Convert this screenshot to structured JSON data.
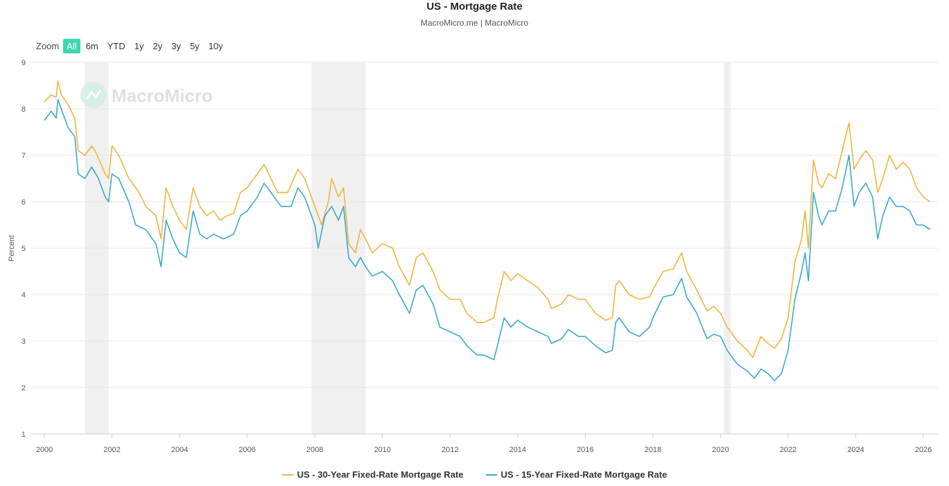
{
  "header": {
    "title": "US - Mortgage Rate",
    "subtitle": "MacroMicro.me | MacroMicro"
  },
  "zoom": {
    "label": "Zoom",
    "options": [
      "All",
      "6m",
      "YTD",
      "1y",
      "2y",
      "3y",
      "5y",
      "10y"
    ],
    "selected": "All"
  },
  "watermark": "MacroMicro",
  "colors": {
    "series30": "#f0b43c",
    "series15": "#38a9cc",
    "recession": "#f0f0f0",
    "grid": "#e6e6e6",
    "accent": "#3ed6b4"
  },
  "chart_data": {
    "type": "line",
    "title": "US - Mortgage Rate",
    "ylabel": "Percent",
    "xlim": [
      2000,
      2026.4
    ],
    "ylim": [
      1,
      9
    ],
    "yticks": [
      "1",
      "2",
      "3",
      "4",
      "5",
      "6",
      "7",
      "8",
      "9"
    ],
    "xticks": [
      "2000",
      "2002",
      "2004",
      "2006",
      "2008",
      "2010",
      "2012",
      "2014",
      "2016",
      "2018",
      "2020",
      "2022",
      "2024",
      "2026"
    ],
    "grid": true,
    "legend_position": "bottom",
    "recessions": [
      [
        2001.2,
        2001.9
      ],
      [
        2007.9,
        2009.5
      ],
      [
        2020.1,
        2020.3
      ]
    ],
    "series": [
      {
        "name": "US - 30-Year Fixed-Rate Mortgage Rate",
        "color": "#f0b43c",
        "points": [
          [
            2000.0,
            8.15
          ],
          [
            2000.2,
            8.3
          ],
          [
            2000.35,
            8.25
          ],
          [
            2000.4,
            8.6
          ],
          [
            2000.5,
            8.3
          ],
          [
            2000.7,
            8.1
          ],
          [
            2000.9,
            7.8
          ],
          [
            2001.0,
            7.1
          ],
          [
            2001.2,
            7.0
          ],
          [
            2001.4,
            7.2
          ],
          [
            2001.5,
            7.1
          ],
          [
            2001.8,
            6.6
          ],
          [
            2001.9,
            6.5
          ],
          [
            2002.0,
            7.2
          ],
          [
            2002.2,
            7.0
          ],
          [
            2002.5,
            6.5
          ],
          [
            2002.8,
            6.2
          ],
          [
            2003.0,
            5.9
          ],
          [
            2003.3,
            5.7
          ],
          [
            2003.45,
            5.2
          ],
          [
            2003.6,
            6.3
          ],
          [
            2003.8,
            5.9
          ],
          [
            2004.0,
            5.6
          ],
          [
            2004.2,
            5.4
          ],
          [
            2004.4,
            6.3
          ],
          [
            2004.6,
            5.9
          ],
          [
            2004.8,
            5.7
          ],
          [
            2005.0,
            5.8
          ],
          [
            2005.2,
            5.6
          ],
          [
            2005.4,
            5.7
          ],
          [
            2005.6,
            5.75
          ],
          [
            2005.8,
            6.2
          ],
          [
            2006.0,
            6.3
          ],
          [
            2006.3,
            6.6
          ],
          [
            2006.5,
            6.8
          ],
          [
            2006.7,
            6.5
          ],
          [
            2006.9,
            6.2
          ],
          [
            2007.2,
            6.2
          ],
          [
            2007.5,
            6.7
          ],
          [
            2007.7,
            6.5
          ],
          [
            2008.0,
            5.9
          ],
          [
            2008.2,
            5.5
          ],
          [
            2008.4,
            6.0
          ],
          [
            2008.5,
            6.5
          ],
          [
            2008.7,
            6.1
          ],
          [
            2008.85,
            6.3
          ],
          [
            2009.0,
            5.1
          ],
          [
            2009.2,
            4.9
          ],
          [
            2009.35,
            5.4
          ],
          [
            2009.5,
            5.2
          ],
          [
            2009.7,
            4.9
          ],
          [
            2010.0,
            5.1
          ],
          [
            2010.3,
            5.0
          ],
          [
            2010.5,
            4.6
          ],
          [
            2010.8,
            4.2
          ],
          [
            2011.0,
            4.8
          ],
          [
            2011.2,
            4.9
          ],
          [
            2011.5,
            4.5
          ],
          [
            2011.7,
            4.1
          ],
          [
            2012.0,
            3.9
          ],
          [
            2012.3,
            3.9
          ],
          [
            2012.5,
            3.6
          ],
          [
            2012.8,
            3.4
          ],
          [
            2013.0,
            3.4
          ],
          [
            2013.3,
            3.5
          ],
          [
            2013.4,
            3.9
          ],
          [
            2013.6,
            4.5
          ],
          [
            2013.8,
            4.3
          ],
          [
            2014.0,
            4.45
          ],
          [
            2014.3,
            4.3
          ],
          [
            2014.6,
            4.15
          ],
          [
            2014.9,
            3.9
          ],
          [
            2015.0,
            3.7
          ],
          [
            2015.3,
            3.8
          ],
          [
            2015.5,
            4.0
          ],
          [
            2015.8,
            3.9
          ],
          [
            2016.0,
            3.9
          ],
          [
            2016.3,
            3.6
          ],
          [
            2016.6,
            3.45
          ],
          [
            2016.8,
            3.5
          ],
          [
            2016.9,
            4.2
          ],
          [
            2017.0,
            4.3
          ],
          [
            2017.3,
            4.0
          ],
          [
            2017.6,
            3.9
          ],
          [
            2017.9,
            3.95
          ],
          [
            2018.0,
            4.1
          ],
          [
            2018.3,
            4.5
          ],
          [
            2018.6,
            4.55
          ],
          [
            2018.85,
            4.9
          ],
          [
            2019.0,
            4.5
          ],
          [
            2019.3,
            4.1
          ],
          [
            2019.6,
            3.65
          ],
          [
            2019.8,
            3.75
          ],
          [
            2020.0,
            3.6
          ],
          [
            2020.2,
            3.3
          ],
          [
            2020.5,
            3.0
          ],
          [
            2020.8,
            2.8
          ],
          [
            2020.95,
            2.65
          ],
          [
            2021.2,
            3.1
          ],
          [
            2021.4,
            2.95
          ],
          [
            2021.6,
            2.85
          ],
          [
            2021.8,
            3.05
          ],
          [
            2022.0,
            3.5
          ],
          [
            2022.2,
            4.7
          ],
          [
            2022.4,
            5.2
          ],
          [
            2022.5,
            5.8
          ],
          [
            2022.6,
            5.0
          ],
          [
            2022.75,
            6.9
          ],
          [
            2022.9,
            6.4
          ],
          [
            2023.0,
            6.3
          ],
          [
            2023.2,
            6.6
          ],
          [
            2023.4,
            6.5
          ],
          [
            2023.6,
            7.1
          ],
          [
            2023.8,
            7.7
          ],
          [
            2023.95,
            6.7
          ],
          [
            2024.1,
            6.9
          ],
          [
            2024.3,
            7.1
          ],
          [
            2024.5,
            6.9
          ],
          [
            2024.65,
            6.2
          ],
          [
            2024.8,
            6.5
          ],
          [
            2025.0,
            7.0
          ],
          [
            2025.2,
            6.7
          ],
          [
            2025.4,
            6.85
          ],
          [
            2025.6,
            6.7
          ],
          [
            2025.8,
            6.3
          ],
          [
            2026.0,
            6.1
          ],
          [
            2026.2,
            6.0
          ]
        ]
      },
      {
        "name": "US - 15-Year Fixed-Rate Mortgage Rate",
        "color": "#38a9cc",
        "points": [
          [
            2000.0,
            7.75
          ],
          [
            2000.2,
            7.95
          ],
          [
            2000.35,
            7.8
          ],
          [
            2000.4,
            8.2
          ],
          [
            2000.55,
            7.9
          ],
          [
            2000.7,
            7.6
          ],
          [
            2000.9,
            7.4
          ],
          [
            2001.0,
            6.6
          ],
          [
            2001.2,
            6.5
          ],
          [
            2001.4,
            6.75
          ],
          [
            2001.6,
            6.5
          ],
          [
            2001.8,
            6.1
          ],
          [
            2001.9,
            6.0
          ],
          [
            2002.0,
            6.6
          ],
          [
            2002.2,
            6.5
          ],
          [
            2002.5,
            6.0
          ],
          [
            2002.7,
            5.5
          ],
          [
            2003.0,
            5.4
          ],
          [
            2003.3,
            5.1
          ],
          [
            2003.45,
            4.6
          ],
          [
            2003.6,
            5.6
          ],
          [
            2003.8,
            5.2
          ],
          [
            2004.0,
            4.9
          ],
          [
            2004.2,
            4.8
          ],
          [
            2004.4,
            5.8
          ],
          [
            2004.6,
            5.3
          ],
          [
            2004.8,
            5.2
          ],
          [
            2005.0,
            5.3
          ],
          [
            2005.3,
            5.2
          ],
          [
            2005.6,
            5.3
          ],
          [
            2005.8,
            5.7
          ],
          [
            2006.0,
            5.8
          ],
          [
            2006.3,
            6.1
          ],
          [
            2006.5,
            6.4
          ],
          [
            2006.8,
            6.1
          ],
          [
            2007.0,
            5.9
          ],
          [
            2007.3,
            5.9
          ],
          [
            2007.5,
            6.3
          ],
          [
            2007.7,
            6.1
          ],
          [
            2008.0,
            5.5
          ],
          [
            2008.1,
            5.0
          ],
          [
            2008.3,
            5.7
          ],
          [
            2008.5,
            5.9
          ],
          [
            2008.7,
            5.6
          ],
          [
            2008.85,
            5.9
          ],
          [
            2009.0,
            4.8
          ],
          [
            2009.2,
            4.6
          ],
          [
            2009.35,
            4.8
          ],
          [
            2009.5,
            4.6
          ],
          [
            2009.7,
            4.4
          ],
          [
            2010.0,
            4.5
          ],
          [
            2010.3,
            4.3
          ],
          [
            2010.5,
            4.0
          ],
          [
            2010.8,
            3.6
          ],
          [
            2011.0,
            4.1
          ],
          [
            2011.2,
            4.2
          ],
          [
            2011.5,
            3.8
          ],
          [
            2011.7,
            3.3
          ],
          [
            2012.0,
            3.2
          ],
          [
            2012.3,
            3.1
          ],
          [
            2012.5,
            2.9
          ],
          [
            2012.8,
            2.7
          ],
          [
            2013.0,
            2.7
          ],
          [
            2013.3,
            2.6
          ],
          [
            2013.4,
            2.9
          ],
          [
            2013.6,
            3.5
          ],
          [
            2013.8,
            3.3
          ],
          [
            2014.0,
            3.45
          ],
          [
            2014.3,
            3.3
          ],
          [
            2014.6,
            3.2
          ],
          [
            2014.9,
            3.1
          ],
          [
            2015.0,
            2.95
          ],
          [
            2015.3,
            3.05
          ],
          [
            2015.5,
            3.25
          ],
          [
            2015.8,
            3.1
          ],
          [
            2016.0,
            3.1
          ],
          [
            2016.3,
            2.9
          ],
          [
            2016.6,
            2.75
          ],
          [
            2016.8,
            2.8
          ],
          [
            2016.9,
            3.4
          ],
          [
            2017.0,
            3.5
          ],
          [
            2017.3,
            3.2
          ],
          [
            2017.6,
            3.1
          ],
          [
            2017.9,
            3.3
          ],
          [
            2018.0,
            3.5
          ],
          [
            2018.3,
            3.95
          ],
          [
            2018.6,
            4.0
          ],
          [
            2018.85,
            4.35
          ],
          [
            2019.0,
            3.95
          ],
          [
            2019.3,
            3.6
          ],
          [
            2019.6,
            3.05
          ],
          [
            2019.8,
            3.15
          ],
          [
            2020.0,
            3.1
          ],
          [
            2020.2,
            2.8
          ],
          [
            2020.5,
            2.5
          ],
          [
            2020.8,
            2.35
          ],
          [
            2021.0,
            2.2
          ],
          [
            2021.2,
            2.4
          ],
          [
            2021.4,
            2.3
          ],
          [
            2021.6,
            2.15
          ],
          [
            2021.8,
            2.3
          ],
          [
            2022.0,
            2.8
          ],
          [
            2022.2,
            3.9
          ],
          [
            2022.4,
            4.5
          ],
          [
            2022.5,
            4.9
          ],
          [
            2022.6,
            4.3
          ],
          [
            2022.75,
            6.2
          ],
          [
            2022.9,
            5.7
          ],
          [
            2023.0,
            5.5
          ],
          [
            2023.2,
            5.8
          ],
          [
            2023.4,
            5.8
          ],
          [
            2023.6,
            6.3
          ],
          [
            2023.8,
            7.0
          ],
          [
            2023.95,
            5.9
          ],
          [
            2024.1,
            6.2
          ],
          [
            2024.3,
            6.4
          ],
          [
            2024.5,
            6.1
          ],
          [
            2024.65,
            5.2
          ],
          [
            2024.8,
            5.7
          ],
          [
            2025.0,
            6.1
          ],
          [
            2025.2,
            5.9
          ],
          [
            2025.4,
            5.9
          ],
          [
            2025.6,
            5.8
          ],
          [
            2025.8,
            5.5
          ],
          [
            2026.0,
            5.5
          ],
          [
            2026.2,
            5.4
          ]
        ]
      }
    ]
  }
}
